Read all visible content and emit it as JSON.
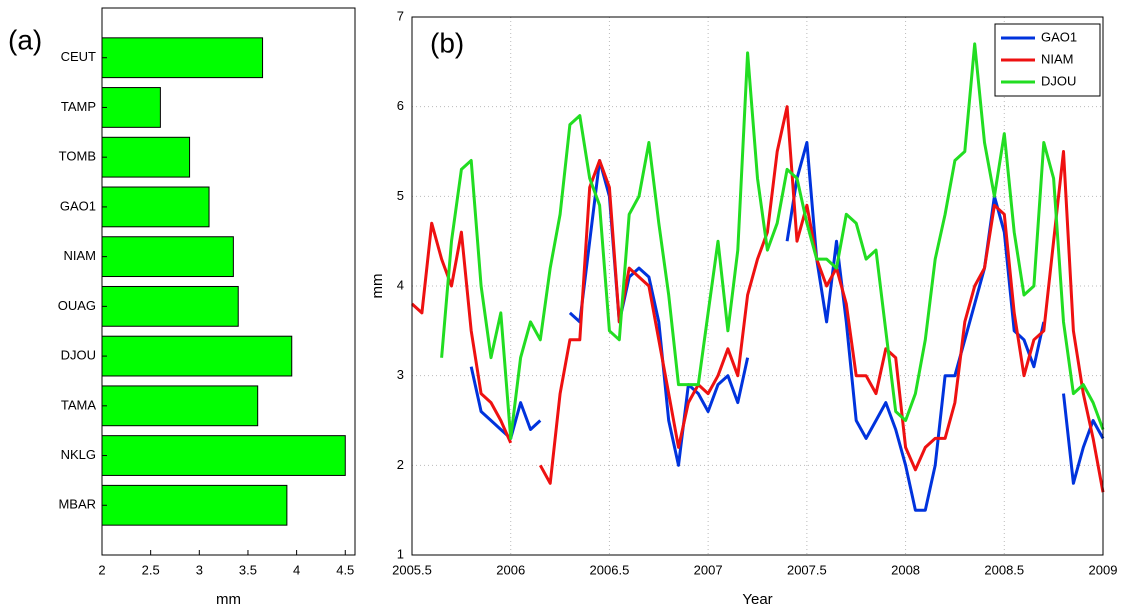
{
  "chart_data": [
    {
      "type": "barh",
      "panel_label": "(a)",
      "xlabel": "mm",
      "categories": [
        "CEUT",
        "TAMP",
        "TOMB",
        "GAO1",
        "NIAM",
        "OUAG",
        "DJOU",
        "TAMA",
        "NKLG",
        "MBAR"
      ],
      "values": [
        3.65,
        2.6,
        2.9,
        3.1,
        3.35,
        3.4,
        3.95,
        3.6,
        4.5,
        3.9
      ],
      "color": "#00ff00",
      "xlim": [
        2,
        4.6
      ],
      "xticks": [
        2,
        2.5,
        3,
        3.5,
        4,
        4.5
      ]
    },
    {
      "type": "line",
      "panel_label": "(b)",
      "xlabel": "Year",
      "ylabel": "mm",
      "x": [
        2005.5,
        2005.55,
        2005.6,
        2005.65,
        2005.7,
        2005.75,
        2005.8,
        2005.85,
        2005.9,
        2005.95,
        2006,
        2006.05,
        2006.1,
        2006.15,
        2006.2,
        2006.25,
        2006.3,
        2006.35,
        2006.4,
        2006.45,
        2006.5,
        2006.55,
        2006.6,
        2006.65,
        2006.7,
        2006.75,
        2006.8,
        2006.85,
        2006.9,
        2006.95,
        2007,
        2007.05,
        2007.1,
        2007.15,
        2007.2,
        2007.25,
        2007.3,
        2007.35,
        2007.4,
        2007.45,
        2007.5,
        2007.55,
        2007.6,
        2007.65,
        2007.7,
        2007.75,
        2007.8,
        2007.85,
        2007.9,
        2007.95,
        2008,
        2008.05,
        2008.1,
        2008.15,
        2008.2,
        2008.25,
        2008.3,
        2008.35,
        2008.4,
        2008.45,
        2008.5,
        2008.55,
        2008.6,
        2008.65,
        2008.7,
        2008.75,
        2008.8,
        2008.85,
        2008.9,
        2008.95,
        2009
      ],
      "series": [
        {
          "name": "GAO1",
          "color": "#0033dd",
          "values": [
            null,
            null,
            null,
            null,
            null,
            null,
            3.1,
            2.6,
            2.5,
            2.4,
            2.3,
            2.7,
            2.4,
            2.5,
            null,
            null,
            3.7,
            3.6,
            4.5,
            5.4,
            5.0,
            3.6,
            4.1,
            4.2,
            4.1,
            3.6,
            2.5,
            2.0,
            2.9,
            2.8,
            2.6,
            2.9,
            3.0,
            2.7,
            3.2,
            null,
            null,
            null,
            4.5,
            5.2,
            5.6,
            4.3,
            3.6,
            4.5,
            3.6,
            2.5,
            2.3,
            2.5,
            2.7,
            2.4,
            2.0,
            1.5,
            1.5,
            2.0,
            3.0,
            3.0,
            3.4,
            3.8,
            4.2,
            5.0,
            4.6,
            3.5,
            3.4,
            3.1,
            3.6,
            null,
            2.8,
            1.8,
            2.2,
            2.5,
            2.3
          ]
        },
        {
          "name": "NIAM",
          "color": "#ee1111",
          "values": [
            3.8,
            3.7,
            4.7,
            4.3,
            4.0,
            4.6,
            3.5,
            2.8,
            2.7,
            2.5,
            2.25,
            null,
            null,
            2.0,
            1.8,
            2.8,
            3.4,
            3.4,
            5.1,
            5.4,
            5.1,
            3.6,
            4.2,
            4.1,
            4.0,
            3.4,
            2.8,
            2.2,
            2.7,
            2.9,
            2.8,
            3.0,
            3.3,
            3.0,
            3.9,
            4.3,
            4.6,
            5.5,
            6.0,
            4.5,
            4.9,
            4.3,
            4.0,
            4.2,
            3.8,
            3.0,
            3.0,
            2.8,
            3.3,
            3.2,
            2.2,
            1.95,
            2.2,
            2.3,
            2.3,
            2.7,
            3.6,
            4.0,
            4.2,
            4.9,
            4.8,
            3.7,
            3.0,
            3.4,
            3.5,
            4.5,
            5.5,
            3.5,
            2.8,
            2.3,
            1.7
          ]
        },
        {
          "name": "DJOU",
          "color": "#22dd22",
          "values": [
            null,
            null,
            null,
            3.2,
            4.5,
            5.3,
            5.4,
            4.0,
            3.2,
            3.7,
            2.3,
            3.2,
            3.6,
            3.4,
            4.2,
            4.8,
            5.8,
            5.9,
            5.2,
            4.9,
            3.5,
            3.4,
            4.8,
            5.0,
            5.6,
            4.7,
            3.9,
            2.9,
            2.9,
            2.9,
            3.7,
            4.5,
            3.5,
            4.4,
            6.6,
            5.2,
            4.4,
            4.7,
            5.3,
            5.2,
            4.7,
            4.3,
            4.3,
            4.2,
            4.8,
            4.7,
            4.3,
            4.4,
            3.5,
            2.6,
            2.5,
            2.8,
            3.4,
            4.3,
            4.8,
            5.4,
            5.5,
            6.7,
            5.6,
            5.0,
            5.7,
            4.6,
            3.9,
            4.0,
            5.6,
            5.2,
            3.6,
            2.8,
            2.9,
            2.7,
            2.4
          ]
        }
      ],
      "xlim": [
        2005.5,
        2009
      ],
      "xticks": [
        2005.5,
        2006,
        2006.5,
        2007,
        2007.5,
        2008,
        2008.5,
        2009
      ],
      "ylim": [
        1,
        7
      ],
      "yticks": [
        1,
        2,
        3,
        4,
        5,
        6,
        7
      ],
      "grid": true
    }
  ]
}
